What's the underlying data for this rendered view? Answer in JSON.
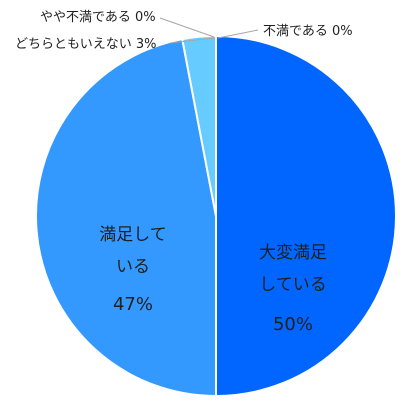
{
  "chart_data": {
    "type": "pie",
    "categories": [
      "大変満足している",
      "満足している",
      "どちらともいえない",
      "やや不満である",
      "不満である"
    ],
    "values": [
      50,
      47,
      3,
      0,
      0
    ],
    "colors": [
      "#0066ff",
      "#3399ff",
      "#66ccff",
      "#99ddff",
      "#cccccc"
    ],
    "labels": [
      {
        "lines": [
          "大変満足",
          "している"
        ],
        "pct": "50%"
      },
      {
        "lines": [
          "満足して",
          "いる"
        ],
        "pct": "47%"
      },
      {
        "text": "どちらともいえない 3%"
      },
      {
        "text": "やや不満である 0%"
      },
      {
        "text": "不満である 0%"
      }
    ]
  }
}
